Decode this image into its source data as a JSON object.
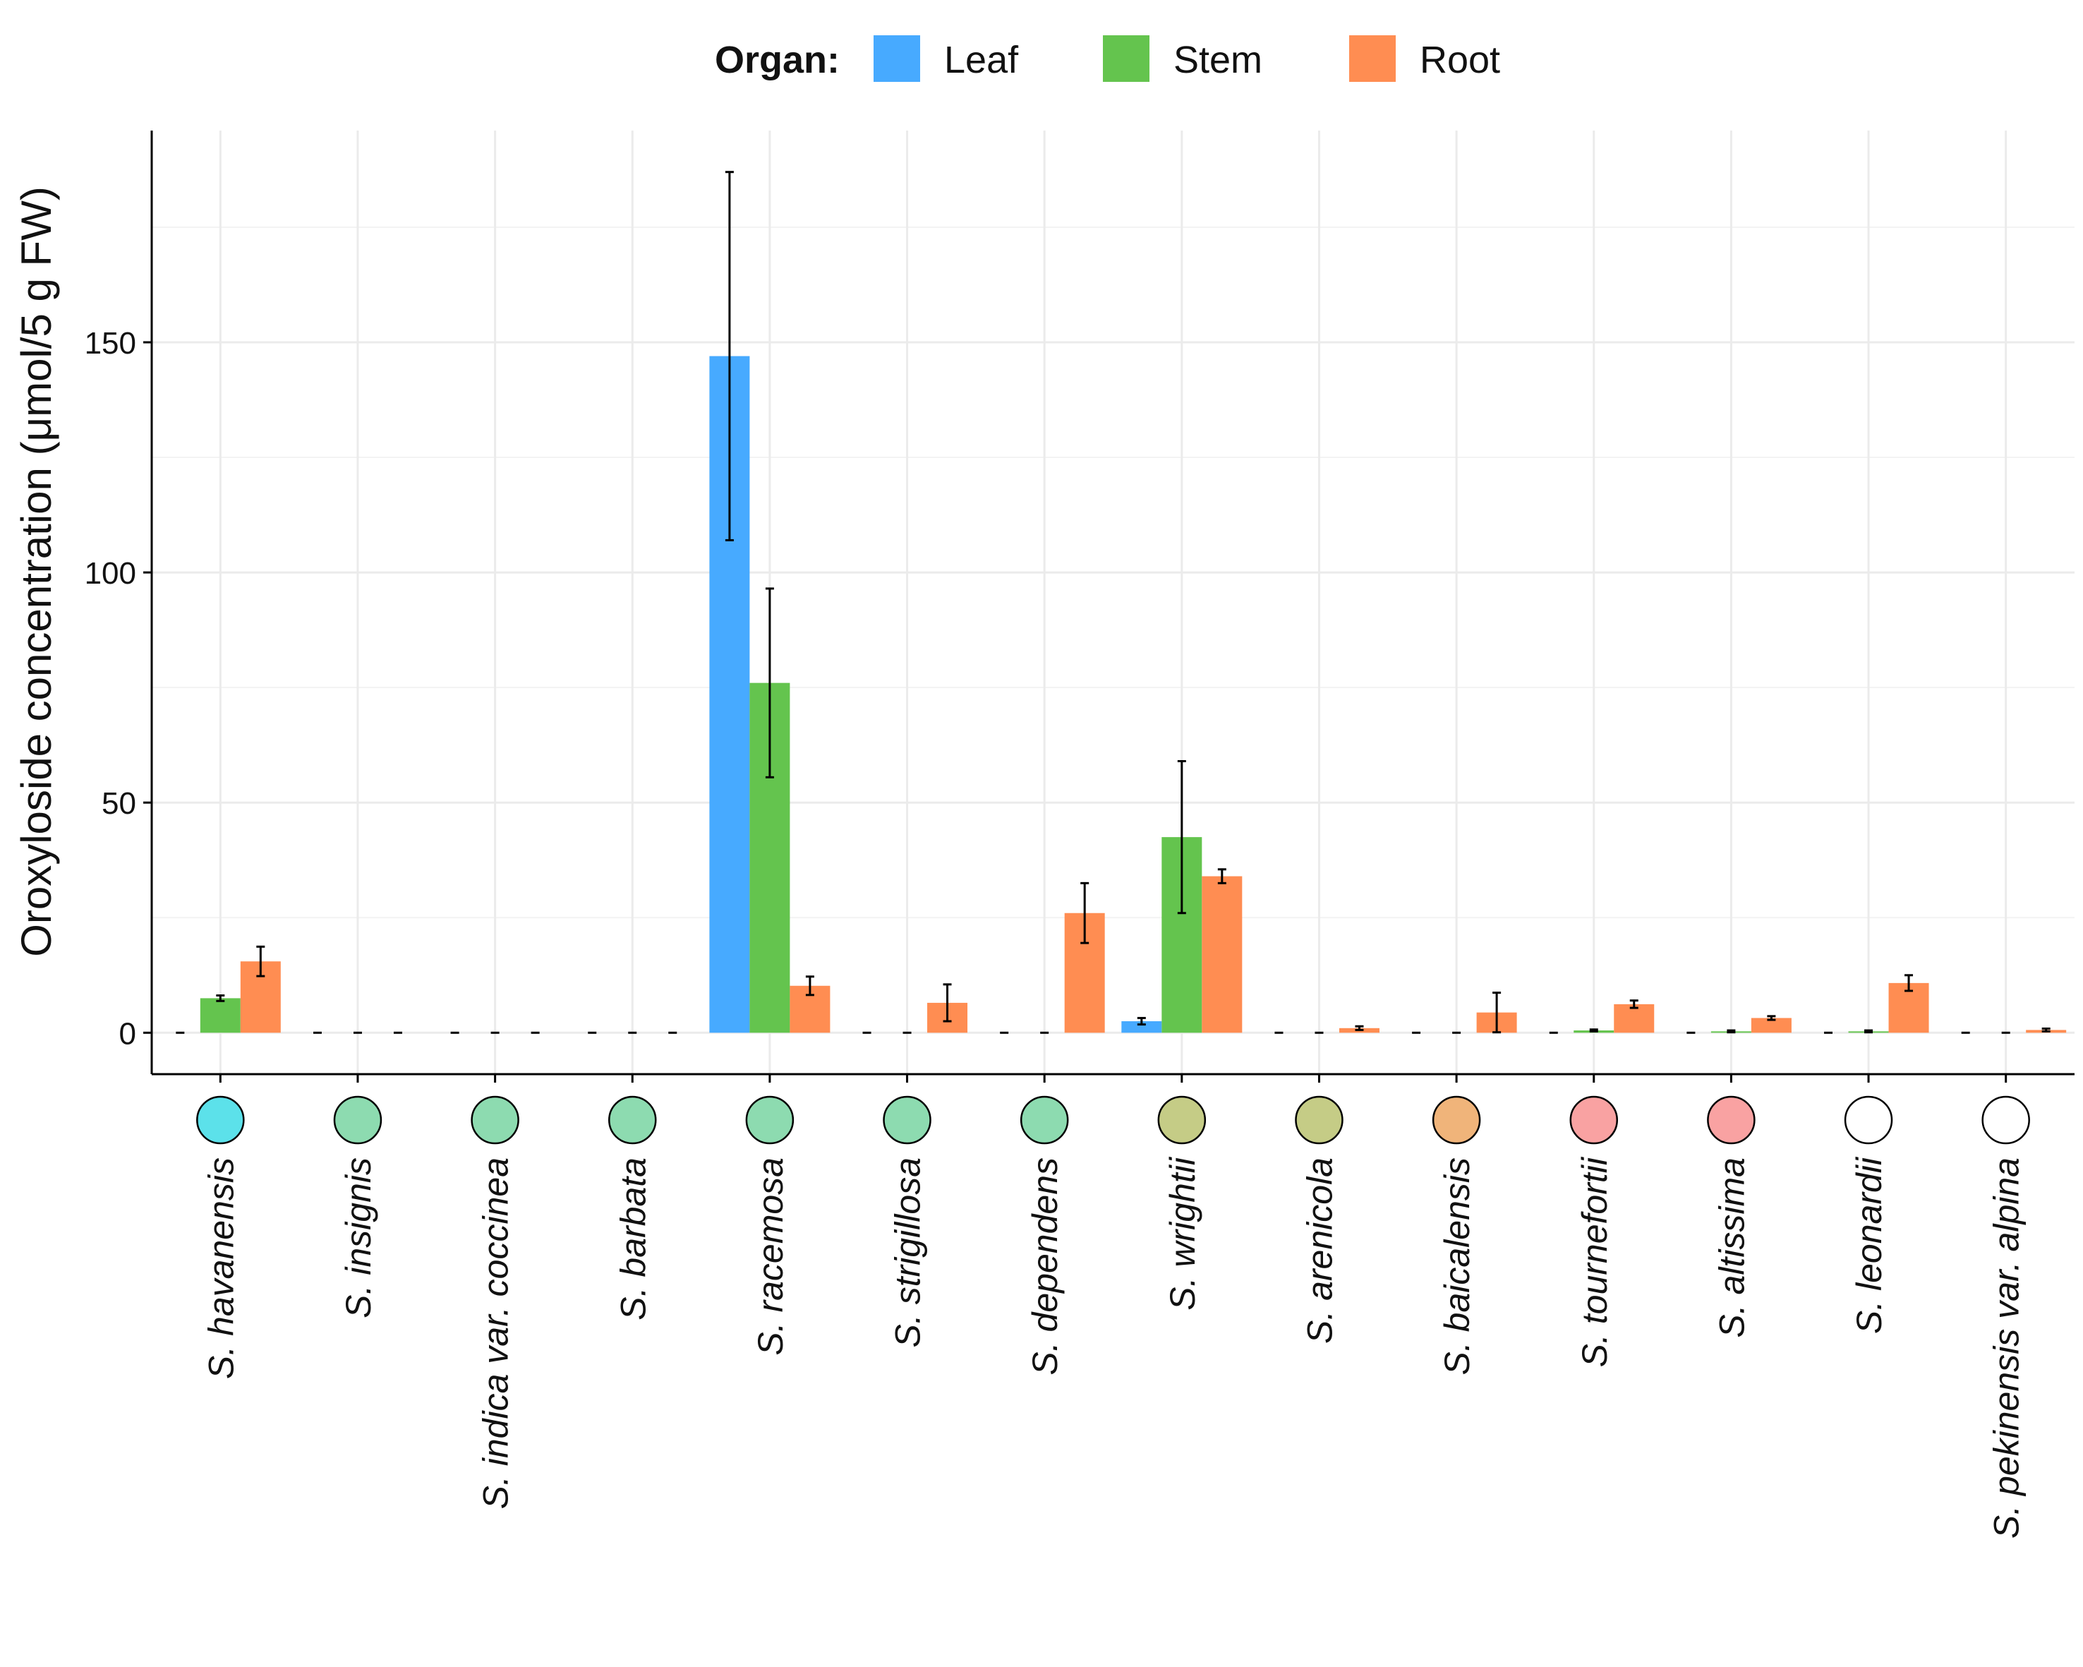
{
  "chart_data": {
    "type": "bar",
    "legend_title": "Organ:",
    "legend_position": "top",
    "ylabel": "Oroxyloside concentration (μmol/5 g FW)",
    "xlabel": "",
    "ylim": [
      -9,
      196
    ],
    "yticks": [
      0,
      50,
      100,
      150
    ],
    "grid": true,
    "categories": [
      "S. havanensis",
      "S. insignis",
      "S. indica var. coccinea",
      "S. barbata",
      "S. racemosa",
      "S. strigillosa",
      "S. dependens",
      "S. wrightii",
      "S. arenicola",
      "S. baicalensis",
      "S. tournefortii",
      "S. altissima",
      "S. leonardii",
      "S. pekinensis var. alpina"
    ],
    "category_marker_colors": [
      "#5ce1ea",
      "#8ddbb0",
      "#8ddbb0",
      "#8ddbb0",
      "#8ddbb0",
      "#8ddbb0",
      "#8ddbb0",
      "#c5cc86",
      "#c5cc86",
      "#f0b47a",
      "#f9a2a2",
      "#f9a2a2",
      "#ffffff",
      "#ffffff"
    ],
    "series": [
      {
        "name": "Leaf",
        "color": "#47aaff",
        "values": [
          0,
          0,
          0,
          0,
          147,
          0,
          0,
          2.5,
          0,
          0,
          0,
          0,
          0,
          0
        ],
        "errors": [
          0,
          0,
          0,
          0,
          40,
          0,
          0,
          0.7,
          0,
          0,
          0,
          0,
          0,
          0
        ]
      },
      {
        "name": "Stem",
        "color": "#64c44e",
        "values": [
          7.5,
          0,
          0,
          0,
          76,
          0,
          0,
          42.5,
          0,
          0,
          0.5,
          0.3,
          0.3,
          0
        ],
        "errors": [
          0.6,
          0,
          0,
          0,
          20.5,
          0,
          0,
          16.5,
          0,
          0,
          0.2,
          0.2,
          0.2,
          0
        ]
      },
      {
        "name": "Root",
        "color": "#ff8d52",
        "values": [
          15.5,
          0,
          0,
          0,
          10.2,
          6.5,
          26,
          34,
          1,
          4.4,
          6.2,
          3.2,
          10.8,
          0.6
        ],
        "errors": [
          3.2,
          0,
          0,
          0,
          2,
          4,
          6.5,
          1.5,
          0.4,
          4.3,
          0.8,
          0.4,
          1.7,
          0.3
        ]
      }
    ]
  }
}
